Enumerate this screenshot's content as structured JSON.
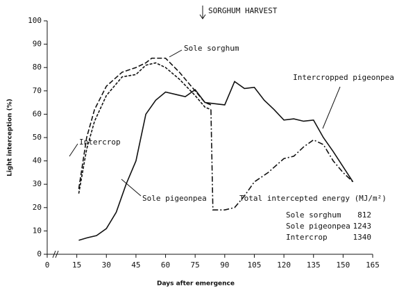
{
  "chart_data": {
    "type": "line",
    "x_label": "Days after emergence",
    "y_label": "Light interception (%)",
    "xlim": [
      0,
      165
    ],
    "xticks": [
      0,
      15,
      30,
      45,
      60,
      75,
      90,
      105,
      120,
      135,
      150,
      165
    ],
    "ylim": [
      0,
      100
    ],
    "yticks": [
      0,
      10,
      20,
      30,
      40,
      50,
      60,
      70,
      80,
      90,
      100
    ],
    "annotations": {
      "harvest": "SORGHUM HARVEST",
      "energy_title": "Total intercepted energy (MJ/m²)"
    },
    "energy_table": {
      "names": [
        "Sole sorghum",
        "Sole pigeonpea",
        "Intercrop"
      ],
      "values": [
        812,
        1243,
        1340
      ]
    },
    "series": [
      {
        "name": "Sole sorghum",
        "color": "#111",
        "dash": "7 3",
        "x": [
          16,
          20,
          24,
          30,
          38,
          45,
          50,
          53,
          60,
          67,
          75,
          80,
          83
        ],
        "values": [
          28,
          50,
          62,
          72,
          78,
          80,
          82,
          84,
          84,
          78,
          70,
          65,
          64
        ]
      },
      {
        "name": "Intercrop",
        "color": "#111",
        "dash": "4 2",
        "x": [
          16,
          20,
          24,
          30,
          38,
          45,
          50,
          55,
          60,
          67,
          75,
          80,
          83
        ],
        "values": [
          26,
          45,
          57,
          68,
          76,
          77,
          81,
          82,
          80,
          75,
          68,
          63,
          62
        ]
      },
      {
        "name": "Sole pigeonpea",
        "color": "#111",
        "dash": "none",
        "x": [
          16,
          20,
          25,
          30,
          35,
          40,
          45,
          50,
          55,
          60,
          65,
          70,
          75,
          80,
          85,
          90,
          95,
          100,
          105,
          110,
          115,
          120,
          125,
          130,
          135,
          140,
          145,
          155
        ],
        "values": [
          6,
          7,
          8,
          11,
          18,
          30,
          40,
          60,
          66,
          69.5,
          68.5,
          67.5,
          70.5,
          65,
          64.5,
          64,
          74,
          71,
          71.5,
          66,
          62,
          57.5,
          58,
          57,
          57.5,
          50,
          44,
          31
        ]
      },
      {
        "name": "Intercropped pigeonpea",
        "color": "#111",
        "dash": "8 3 2 3",
        "x": [
          83,
          84,
          90,
          95,
          100,
          105,
          112,
          120,
          125,
          130,
          135,
          140,
          145,
          150,
          155
        ],
        "values": [
          62,
          19,
          19,
          20,
          25,
          31,
          35,
          41,
          42,
          46,
          49,
          47,
          40,
          35,
          31
        ]
      }
    ]
  }
}
